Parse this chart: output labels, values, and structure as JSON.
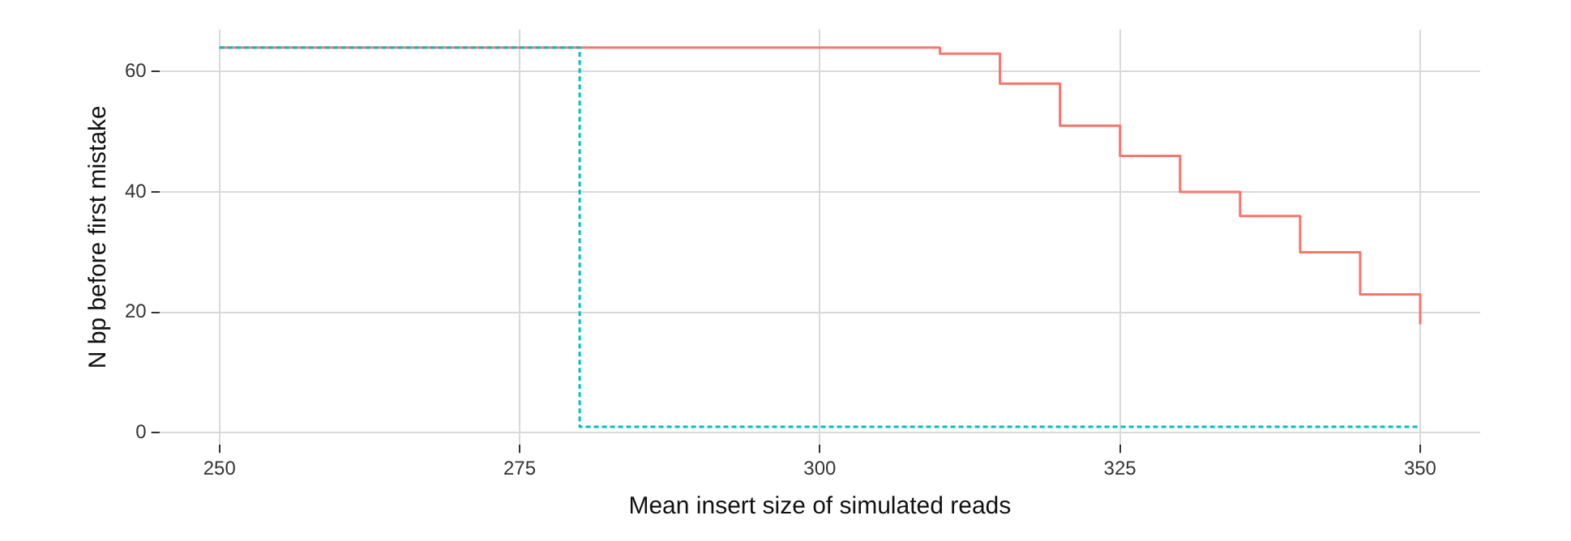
{
  "chart_data": {
    "type": "step",
    "xlabel": "Mean insert size of simulated reads",
    "ylabel": "N bp before first mistake",
    "xlim": [
      245,
      355
    ],
    "xticks": [
      250,
      275,
      300,
      325,
      350
    ],
    "ylim": [
      -2,
      67
    ],
    "yticks": [
      0,
      20,
      40,
      60
    ],
    "grid": true,
    "series": [
      {
        "color": "#f8766d",
        "line_style": "solid",
        "x": [
          250,
          310,
          315,
          320,
          325,
          330,
          335,
          340,
          345,
          350
        ],
        "values": [
          64,
          63,
          58,
          51,
          46,
          40,
          36,
          30,
          23,
          18
        ]
      },
      {
        "color": "#00bfc4",
        "line_style": "dashed",
        "x": [
          250,
          280,
          350
        ],
        "values": [
          64,
          1,
          1
        ]
      }
    ]
  }
}
